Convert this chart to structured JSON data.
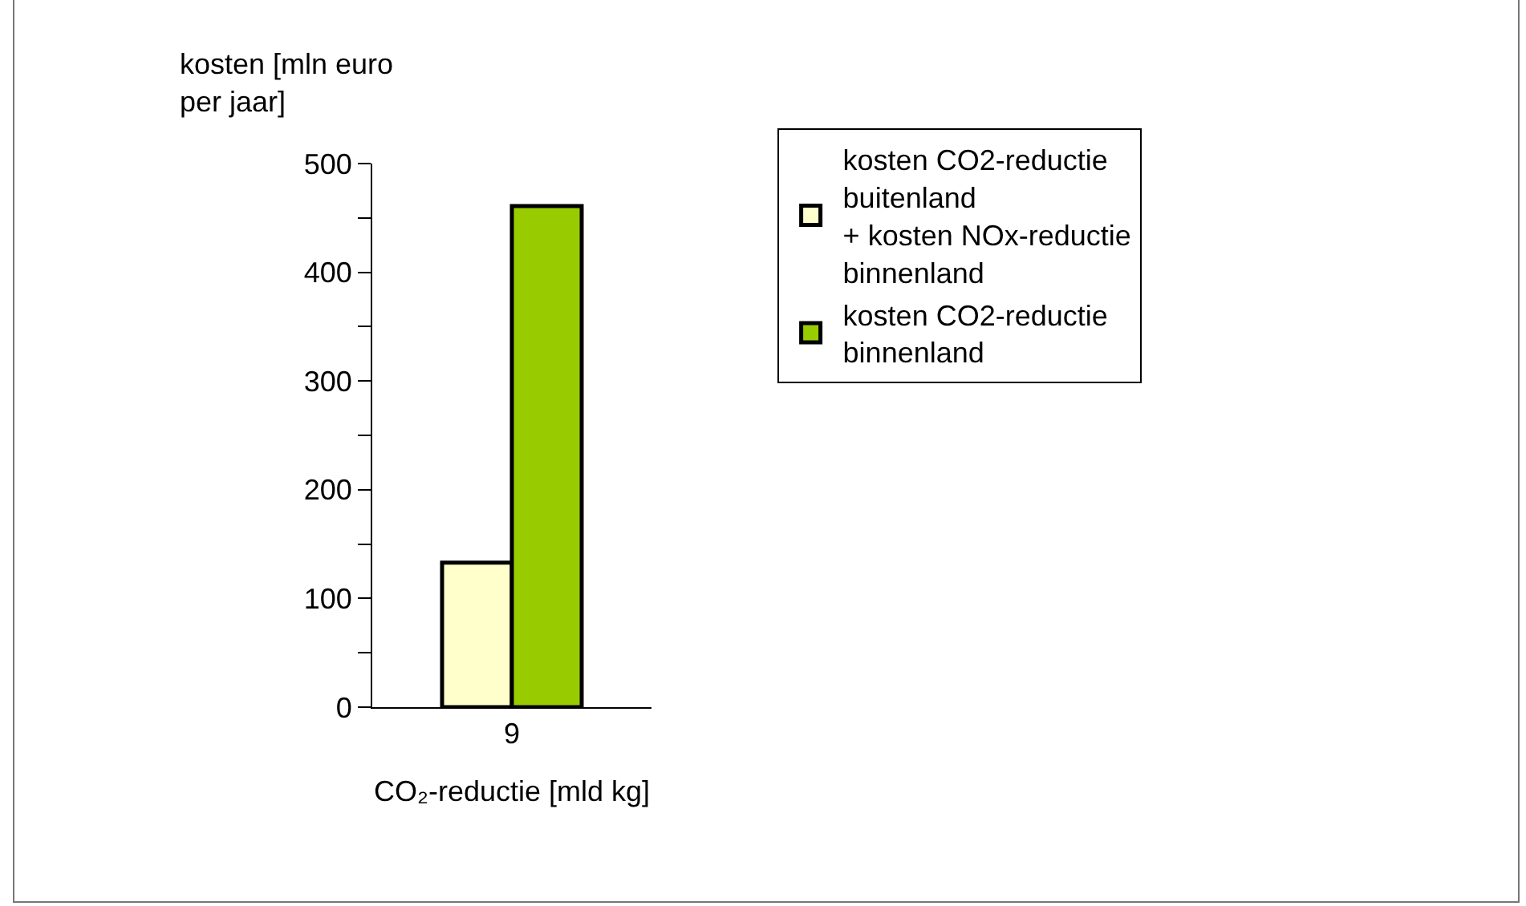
{
  "chart_data": {
    "type": "bar",
    "categories": [
      "9"
    ],
    "series": [
      {
        "name": "kosten CO2-reductie\nbuitenland\n+ kosten NOx-reductie\nbinnenland",
        "color": "#ffffcc",
        "values": [
          133
        ]
      },
      {
        "name": "kosten CO2-reductie\nbinnenland",
        "color": "#99cc00",
        "values": [
          461
        ]
      }
    ],
    "ylabel": "kosten [mln euro\nper jaar]",
    "xlabel": "CO₂-reductie [mld kg]",
    "ylim": [
      0,
      500
    ],
    "yticks": [
      0,
      {
        "value": 50,
        "label": null
      },
      100,
      {
        "value": 150,
        "label": null
      },
      200,
      {
        "value": 250,
        "label": null
      },
      300,
      {
        "value": 350,
        "label": null
      },
      400,
      {
        "value": 450,
        "label": null
      },
      500
    ],
    "grid": false,
    "legend": "right"
  }
}
